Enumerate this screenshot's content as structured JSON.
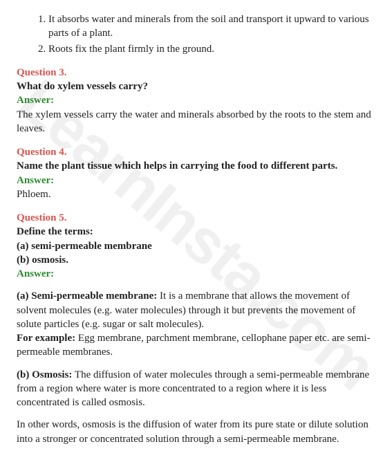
{
  "watermark": "LearnInsta.com",
  "intro_list": [
    "It absorbs water and minerals from the soil and transport it upward to various parts of a plant.",
    "Roots fix the plant firmly in the ground."
  ],
  "q3": {
    "label": "Question 3.",
    "text": "What do xylem vessels carry?",
    "answer_label": "Answer:",
    "answer": "The xylem vessels carry the water and minerals absorbed by the roots to the stem and leaves."
  },
  "q4": {
    "label": "Question 4.",
    "text": "Name the plant tissue which helps in carrying the food to different parts.",
    "answer_label": "Answer:",
    "answer": "Phloem."
  },
  "q5": {
    "label": "Question 5.",
    "text_line1": "Define the terms:",
    "text_line2": "(a) semi-permeable membrane",
    "text_line3": "(b) osmosis.",
    "answer_label": "Answer:",
    "a_head": "(a) Semi-permeable membrane:",
    "a_body": " It is a membrane that allows the movement of solvent molecules (e.g. water molecules) through it but prevents the movement of solute particles (e.g. sugar or salt molecules).",
    "a_eg_head": "For example:",
    "a_eg_body": " Egg membrane, parchment membrane, cellophane paper etc. are semi-permeable membranes.",
    "b_head": "(b) Osmosis:",
    "b_body": " The diffusion of water molecules through a semi-permeable membrane from a region where water is more concentrated to a region where it is less concentrated is called osmosis.",
    "b_extra": "In other words, osmosis is the diffusion of water from its pure state or dilute solution into a stronger or concentrated solution through a semi-permeable membrane."
  }
}
